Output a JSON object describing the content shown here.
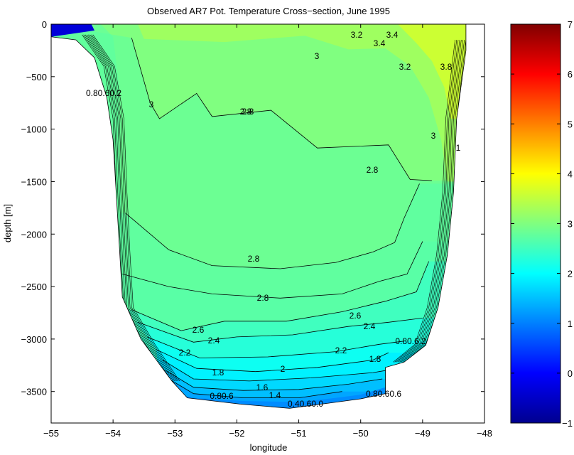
{
  "chart_data": {
    "type": "heatmap",
    "subtype": "filled contour cross-section",
    "title": "Observed AR7 Pot. Temperature Cross−section, June 1995",
    "xlabel": "longitude",
    "ylabel": "depth [m]",
    "xlim": [
      -55,
      -48
    ],
    "ylim": [
      -3800,
      0
    ],
    "xticks": [
      -55,
      -54,
      -53,
      -52,
      -51,
      -50,
      -49,
      -48
    ],
    "xtick_labels": [
      "−55",
      "−54",
      "−53",
      "−52",
      "−51",
      "−50",
      "−49",
      "−48"
    ],
    "yticks": [
      0,
      -500,
      -1000,
      -1500,
      -2000,
      -2500,
      -3000,
      -3500
    ],
    "ytick_labels": [
      "0",
      "−500",
      "−1000",
      "−1500",
      "−2000",
      "−2500",
      "−3000",
      "−3500"
    ],
    "colorbar": {
      "min": -1,
      "max": 7,
      "ticks": [
        7,
        6,
        5,
        4,
        3,
        2,
        1,
        0,
        -1
      ],
      "tick_labels": [
        "7",
        "6",
        "5",
        "4",
        "3",
        "2",
        "1",
        "0",
        "−1"
      ],
      "colormap": "jet"
    },
    "grid": false,
    "bottom_profile": [
      [
        -54.6,
        -150
      ],
      [
        -54.3,
        -320
      ],
      [
        -54.1,
        -700
      ],
      [
        -54.0,
        -1100
      ],
      [
        -53.95,
        -1600
      ],
      [
        -53.9,
        -2100
      ],
      [
        -53.85,
        -2600
      ],
      [
        -53.55,
        -3000
      ],
      [
        -53.05,
        -3400
      ],
      [
        -52.8,
        -3560
      ],
      [
        -51.95,
        -3620
      ],
      [
        -51.15,
        -3660
      ],
      [
        -50.5,
        -3610
      ],
      [
        -50.0,
        -3570
      ],
      [
        -49.6,
        -3520
      ],
      [
        -49.6,
        -3270
      ],
      [
        -49.3,
        -3220
      ],
      [
        -48.95,
        -3060
      ],
      [
        -48.75,
        -2700
      ],
      [
        -48.6,
        -2200
      ],
      [
        -48.5,
        -1600
      ],
      [
        -48.45,
        -900
      ],
      [
        -48.3,
        -250
      ],
      [
        -48.3,
        0
      ]
    ],
    "contours": [
      {
        "level": 2.8,
        "points": [
          [
            -53.7,
            -130
          ],
          [
            -53.4,
            -750
          ],
          [
            -53.25,
            -900
          ],
          [
            -52.65,
            -660
          ],
          [
            -52.4,
            -880
          ],
          [
            -51.45,
            -820
          ],
          [
            -50.7,
            -1180
          ],
          [
            -49.55,
            -1150
          ],
          [
            -49.2,
            -1480
          ],
          [
            -48.85,
            -1490
          ]
        ]
      },
      {
        "level": 2.8,
        "points": [
          [
            -53.8,
            -1800
          ],
          [
            -53.1,
            -2150
          ],
          [
            -52.4,
            -2300
          ],
          [
            -51.3,
            -2330
          ],
          [
            -50.4,
            -2270
          ],
          [
            -49.8,
            -2170
          ],
          [
            -49.45,
            -2080
          ],
          [
            -49.3,
            -1850
          ],
          [
            -49.05,
            -1520
          ]
        ]
      },
      {
        "level": 2.8,
        "points": [
          [
            -53.85,
            -2380
          ],
          [
            -53.1,
            -2500
          ],
          [
            -52.4,
            -2570
          ],
          [
            -51.3,
            -2610
          ],
          [
            -50.3,
            -2570
          ],
          [
            -49.7,
            -2450
          ],
          [
            -49.25,
            -2380
          ],
          [
            -49.0,
            -2070
          ]
        ]
      },
      {
        "level": 2.6,
        "points": [
          [
            -53.7,
            -2720
          ],
          [
            -52.9,
            -2920
          ],
          [
            -52.2,
            -2830
          ],
          [
            -51.2,
            -2830
          ],
          [
            -50.3,
            -2740
          ],
          [
            -49.6,
            -2640
          ],
          [
            -49.1,
            -2550
          ],
          [
            -48.9,
            -2260
          ]
        ]
      },
      {
        "level": 2.4,
        "points": [
          [
            -53.6,
            -2840
          ],
          [
            -52.7,
            -3030
          ],
          [
            -52.0,
            -2980
          ],
          [
            -51.1,
            -2960
          ],
          [
            -50.2,
            -2880
          ],
          [
            -49.55,
            -2840
          ],
          [
            -49.0,
            -2800
          ]
        ]
      },
      {
        "level": 2.2,
        "points": [
          [
            -53.45,
            -2980
          ],
          [
            -52.6,
            -3180
          ],
          [
            -51.5,
            -3170
          ],
          [
            -50.4,
            -3120
          ],
          [
            -49.7,
            -3050
          ],
          [
            -49.3,
            -3020
          ]
        ]
      },
      {
        "level": 2.0,
        "points": [
          [
            -53.3,
            -3100
          ],
          [
            -52.65,
            -3280
          ],
          [
            -51.7,
            -3310
          ],
          [
            -50.7,
            -3270
          ],
          [
            -49.8,
            -3200
          ],
          [
            -49.55,
            -3130
          ]
        ]
      },
      {
        "level": 1.8,
        "points": [
          [
            -53.2,
            -3200
          ],
          [
            -52.7,
            -3380
          ],
          [
            -51.8,
            -3400
          ],
          [
            -50.8,
            -3370
          ],
          [
            -49.8,
            -3320
          ],
          [
            -49.6,
            -3300
          ]
        ]
      },
      {
        "level": 1.6,
        "points": [
          [
            -53.15,
            -3300
          ],
          [
            -52.7,
            -3460
          ],
          [
            -51.9,
            -3490
          ],
          [
            -51.0,
            -3480
          ],
          [
            -50.2,
            -3430
          ],
          [
            -49.65,
            -3380
          ]
        ]
      },
      {
        "level": 1.4,
        "points": [
          [
            -53.1,
            -3380
          ],
          [
            -52.7,
            -3520
          ],
          [
            -51.9,
            -3560
          ],
          [
            -51.0,
            -3560
          ],
          [
            -50.3,
            -3500
          ]
        ]
      }
    ],
    "contour_labels": [
      "2.8",
      "2.8",
      "2.8",
      "2.8",
      "2.8",
      "2.6",
      "2.6",
      "2.4",
      "2.4",
      "2.2",
      "2.2",
      "2",
      "1.8",
      "1.8",
      "1.6",
      "1.4",
      "3",
      "3",
      "3",
      "3.2",
      "3.4",
      "3.4",
      "3.2",
      "3.8",
      "1",
      "0.80.60.2",
      "0.40.60.0",
      "0.80.6",
      "0.80.60.6",
      "0.80.6.2"
    ]
  }
}
